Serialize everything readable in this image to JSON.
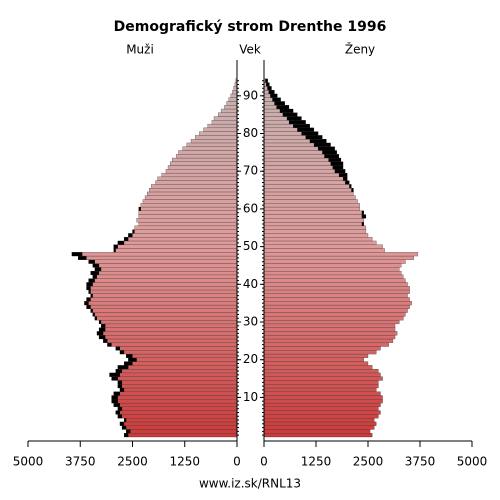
{
  "chart_data": {
    "type": "pyramid",
    "title": "Demografický strom Drenthe 1996",
    "left_label": "Muži",
    "center_label": "Vek",
    "right_label": "Ženy",
    "footer": "www.iz.sk/RNL13",
    "xlim": [
      0,
      5000
    ],
    "xticks": [
      0,
      1250,
      2500,
      3750,
      5000
    ],
    "ylim": [
      0,
      100
    ],
    "yticks": [
      10,
      20,
      30,
      40,
      50,
      60,
      70,
      80,
      90
    ],
    "color_young": "#cc3a3a",
    "color_mid": "#e09a9a",
    "color_old": "#c4b4b4",
    "excess_color": "#000000",
    "ages": [
      0,
      1,
      2,
      3,
      4,
      5,
      6,
      7,
      8,
      9,
      10,
      11,
      12,
      13,
      14,
      15,
      16,
      17,
      18,
      19,
      20,
      21,
      22,
      23,
      24,
      25,
      26,
      27,
      28,
      29,
      30,
      31,
      32,
      33,
      34,
      35,
      36,
      37,
      38,
      39,
      40,
      41,
      42,
      43,
      44,
      45,
      46,
      47,
      48,
      49,
      50,
      51,
      52,
      53,
      54,
      55,
      56,
      57,
      58,
      59,
      60,
      61,
      62,
      63,
      64,
      65,
      66,
      67,
      68,
      69,
      70,
      71,
      72,
      73,
      74,
      75,
      76,
      77,
      78,
      79,
      80,
      81,
      82,
      83,
      84,
      85,
      86,
      87,
      88,
      89,
      90,
      91,
      92,
      93,
      94
    ],
    "series": [
      {
        "name": "Muži",
        "side": "left",
        "values": [
          2700,
          2650,
          2750,
          2800,
          2700,
          2850,
          2900,
          2850,
          2950,
          3000,
          3000,
          2950,
          2800,
          2850,
          2850,
          3000,
          3050,
          2900,
          2850,
          2700,
          2600,
          2650,
          2800,
          2900,
          3100,
          3200,
          3300,
          3350,
          3300,
          3250,
          3300,
          3400,
          3450,
          3500,
          3600,
          3650,
          3600,
          3500,
          3550,
          3600,
          3600,
          3550,
          3450,
          3500,
          3400,
          3450,
          3550,
          3800,
          3950,
          2950,
          2950,
          2850,
          2700,
          2600,
          2500,
          2450,
          2350,
          2400,
          2350,
          2350,
          2350,
          2300,
          2250,
          2200,
          2150,
          2100,
          2050,
          1950,
          1900,
          1800,
          1700,
          1650,
          1600,
          1550,
          1450,
          1400,
          1300,
          1200,
          1100,
          1000,
          900,
          800,
          700,
          600,
          550,
          450,
          380,
          300,
          250,
          200,
          150,
          110,
          80,
          50,
          30
        ]
      },
      {
        "name": "Ženy",
        "side": "right",
        "values": [
          2600,
          2550,
          2650,
          2700,
          2650,
          2750,
          2800,
          2750,
          2800,
          2850,
          2850,
          2800,
          2700,
          2750,
          2750,
          2850,
          2800,
          2750,
          2600,
          2500,
          2400,
          2500,
          2700,
          2800,
          3000,
          3100,
          3150,
          3200,
          3150,
          3150,
          3250,
          3350,
          3400,
          3450,
          3500,
          3550,
          3500,
          3450,
          3500,
          3500,
          3450,
          3400,
          3350,
          3300,
          3250,
          3300,
          3400,
          3600,
          3700,
          2900,
          2850,
          2700,
          2600,
          2500,
          2450,
          2450,
          2400,
          2400,
          2450,
          2400,
          2300,
          2300,
          2250,
          2200,
          2150,
          2150,
          2100,
          2050,
          2000,
          2000,
          1950,
          1900,
          1900,
          1850,
          1800,
          1750,
          1700,
          1600,
          1500,
          1400,
          1300,
          1200,
          1100,
          1000,
          900,
          800,
          700,
          600,
          500,
          400,
          320,
          250,
          180,
          130,
          90
        ]
      }
    ]
  }
}
